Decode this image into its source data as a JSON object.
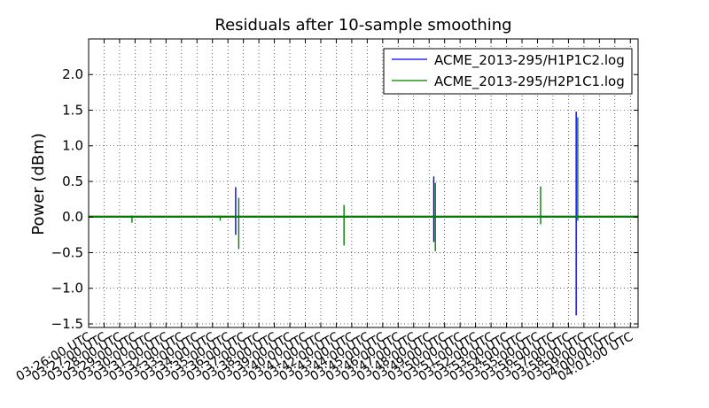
{
  "chart_data": {
    "type": "line",
    "title": "Residuals after 10-sample smoothing",
    "xlabel": "",
    "ylabel": "Power (dBm)",
    "ylim": [
      -1.55,
      2.5
    ],
    "yticks": [
      -1.5,
      -1.0,
      -0.5,
      0.0,
      0.5,
      1.0,
      1.5,
      2.0
    ],
    "ytick_labels": [
      "−1.5",
      "−1.0",
      "−0.5",
      "0.0",
      "0.5",
      "1.0",
      "1.5",
      "2.0"
    ],
    "xlim_minutes": [
      0,
      35.5
    ],
    "xtick_labels": [
      "03:26:00 UTC",
      "03:27:00 UTC",
      "03:28:00 UTC",
      "03:29:00 UTC",
      "03:30:00 UTC",
      "03:31:00 UTC",
      "03:32:00 UTC",
      "03:33:00 UTC",
      "03:34:00 UTC",
      "03:35:00 UTC",
      "03:36:00 UTC",
      "03:37:00 UTC",
      "03:38:00 UTC",
      "03:39:00 UTC",
      "03:40:00 UTC",
      "03:41:00 UTC",
      "03:42:00 UTC",
      "03:43:00 UTC",
      "03:44:00 UTC",
      "03:45:00 UTC",
      "03:46:00 UTC",
      "03:47:00 UTC",
      "03:48:00 UTC",
      "03:49:00 UTC",
      "03:50:00 UTC",
      "03:51:00 UTC",
      "03:52:00 UTC",
      "03:53:00 UTC",
      "03:54:00 UTC",
      "03:55:00 UTC",
      "03:56:00 UTC",
      "03:57:00 UTC",
      "03:58:00 UTC",
      "03:59:00 UTC",
      "04:00:00 UTC",
      "04:01:00 UTC"
    ],
    "grid": true,
    "legend_position": "top-right",
    "series": [
      {
        "name": "ACME_2013-295/H1P1C2.log",
        "color": "#0000ff",
        "spikes": [
          {
            "t_min": 9.5,
            "low": -0.25,
            "high": 0.42
          },
          {
            "t_min": 22.3,
            "low": -0.35,
            "high": 0.57
          },
          {
            "t_min": 31.5,
            "low": -1.38,
            "high": 1.48
          }
        ]
      },
      {
        "name": "ACME_2013-295/H2P1C1.log",
        "color": "#008000",
        "spikes": [
          {
            "t_min": 2.8,
            "low": -0.08,
            "high": 0.02
          },
          {
            "t_min": 8.5,
            "low": -0.05,
            "high": 0.02
          },
          {
            "t_min": 9.7,
            "low": -0.45,
            "high": 0.27
          },
          {
            "t_min": 16.5,
            "low": -0.4,
            "high": 0.17
          },
          {
            "t_min": 22.4,
            "low": -0.48,
            "high": 0.48
          },
          {
            "t_min": 29.2,
            "low": -0.1,
            "high": 0.43
          },
          {
            "t_min": 31.6,
            "low": -0.05,
            "high": 1.4
          }
        ]
      }
    ]
  }
}
